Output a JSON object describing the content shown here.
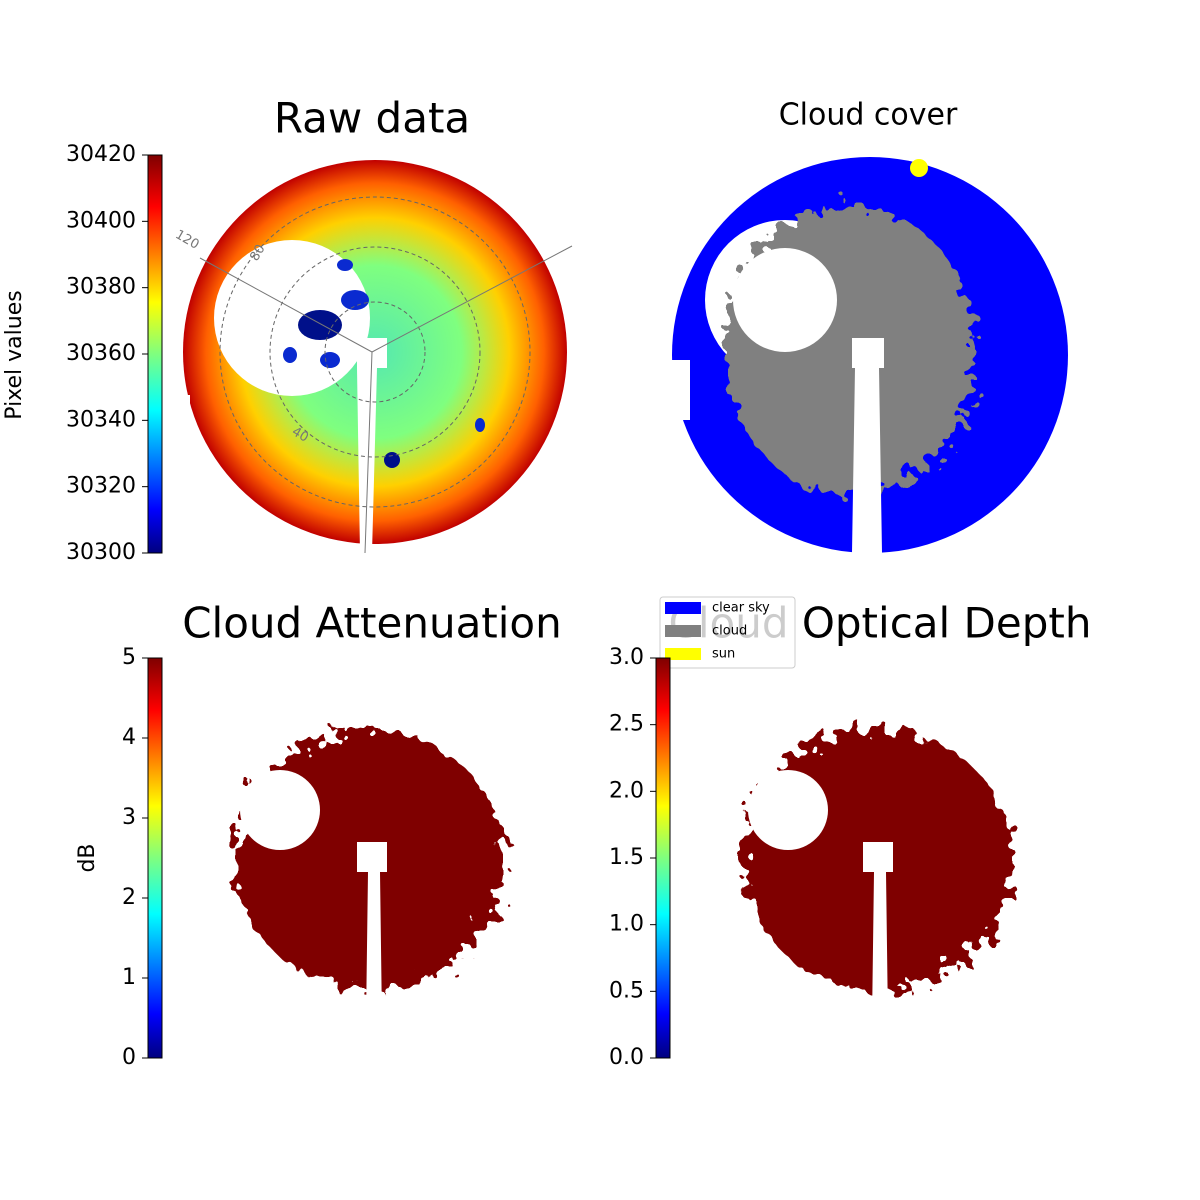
{
  "chart_data": [
    {
      "type": "image",
      "title": "Raw data",
      "colorbar_label": "Pixel values",
      "colormap": "jet",
      "clim": [
        30300,
        30420
      ],
      "cticks": [
        30300,
        30320,
        30340,
        30360,
        30380,
        30400,
        30420
      ],
      "annotations": [
        "120",
        "80",
        "40"
      ]
    },
    {
      "type": "image",
      "title": "Cloud cover",
      "legend_entries": [
        {
          "name": "clear sky",
          "color": "#0000ff"
        },
        {
          "name": "cloud",
          "color": "#808080"
        },
        {
          "name": "sun",
          "color": "#ffff00"
        }
      ]
    },
    {
      "type": "image",
      "title": "Cloud Attenuation",
      "colorbar_label": "dB",
      "colormap": "jet",
      "clim": [
        0,
        5
      ],
      "cticks": [
        0,
        1,
        2,
        3,
        4,
        5
      ]
    },
    {
      "type": "image",
      "title": "Cloud Optical Depth",
      "colormap": "jet",
      "clim": [
        0,
        3
      ],
      "cticks": [
        {
          "value": 0,
          "label": "0.0"
        },
        {
          "value": 0.5,
          "label": "0.5"
        },
        {
          "value": 1,
          "label": "1.0"
        },
        {
          "value": 1.5,
          "label": "1.5"
        },
        {
          "value": 2,
          "label": "2.0"
        },
        {
          "value": 2.5,
          "label": "2.5"
        },
        {
          "value": 3,
          "label": "3.0"
        }
      ]
    }
  ]
}
